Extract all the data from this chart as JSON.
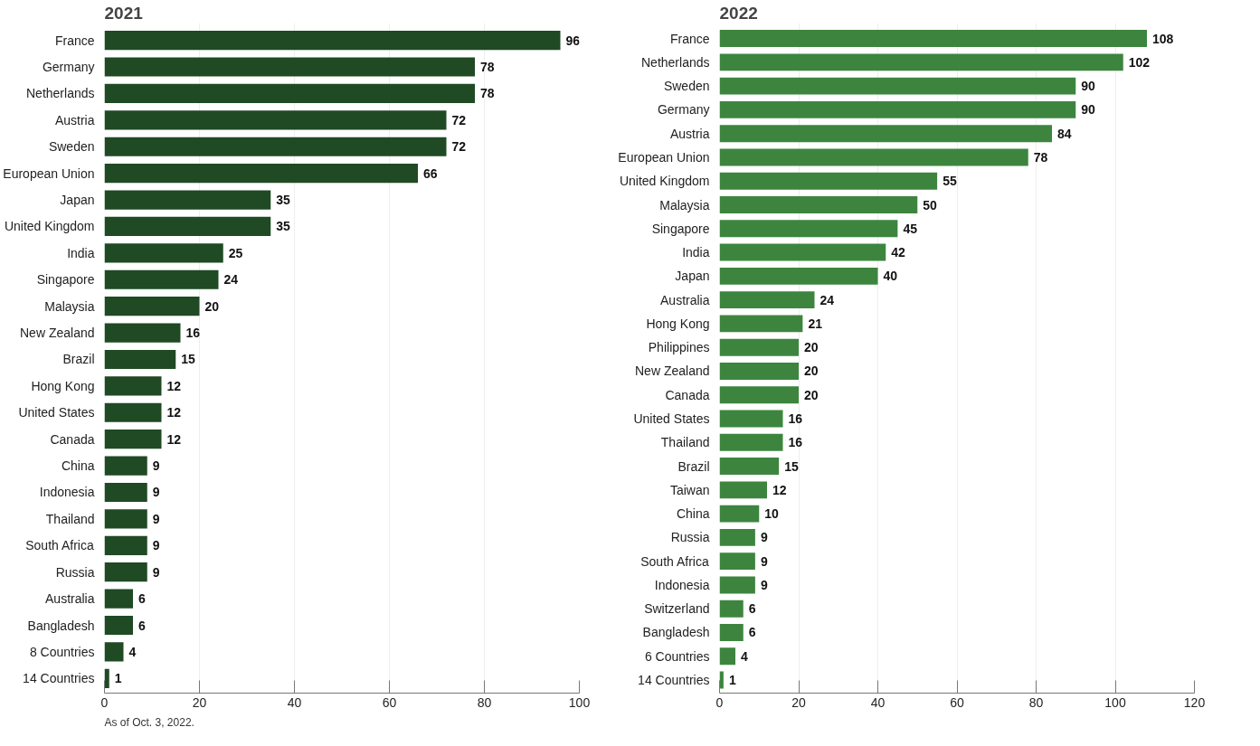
{
  "chart_data": [
    {
      "type": "bar",
      "orientation": "horizontal",
      "title": "2021",
      "categories": [
        "France",
        "Germany",
        "Netherlands",
        "Austria",
        "Sweden",
        "European Union",
        "Japan",
        "United Kingdom",
        "India",
        "Singapore",
        "Malaysia",
        "New Zealand",
        "Brazil",
        "Hong Kong",
        "United States",
        "Canada",
        "China",
        "Indonesia",
        "Thailand",
        "South Africa",
        "Russia",
        "Australia",
        "Bangladesh",
        "8 Countries",
        "14 Countries"
      ],
      "values": [
        96,
        78,
        78,
        72,
        72,
        66,
        35,
        35,
        25,
        24,
        20,
        16,
        15,
        12,
        12,
        12,
        9,
        9,
        9,
        9,
        9,
        6,
        6,
        4,
        1
      ],
      "color": "#1f4a24",
      "xlim": [
        0,
        100
      ],
      "xticks": [
        0,
        20,
        40,
        60,
        80,
        100
      ],
      "grid": "x",
      "data_labels": true,
      "annotations": [
        "As of Oct. 3, 2022."
      ]
    },
    {
      "type": "bar",
      "orientation": "horizontal",
      "title": "2022",
      "categories": [
        "France",
        "Netherlands",
        "Sweden",
        "Germany",
        "Austria",
        "European Union",
        "United Kingdom",
        "Malaysia",
        "Singapore",
        "India",
        "Japan",
        "Australia",
        "Hong Kong",
        "Philippines",
        "New Zealand",
        "Canada",
        "United States",
        "Thailand",
        "Brazil",
        "Taiwan",
        "China",
        "Russia",
        "South Africa",
        "Indonesia",
        "Switzerland",
        "Bangladesh",
        "6 Countries",
        "14 Countries"
      ],
      "values": [
        108,
        102,
        90,
        90,
        84,
        78,
        55,
        50,
        45,
        42,
        40,
        24,
        21,
        20,
        20,
        20,
        16,
        16,
        15,
        12,
        10,
        9,
        9,
        9,
        6,
        6,
        4,
        1
      ],
      "color": "#3d853f",
      "xlim": [
        0,
        120
      ],
      "xticks": [
        0,
        20,
        40,
        60,
        80,
        100,
        120
      ],
      "grid": "x",
      "data_labels": true
    }
  ]
}
